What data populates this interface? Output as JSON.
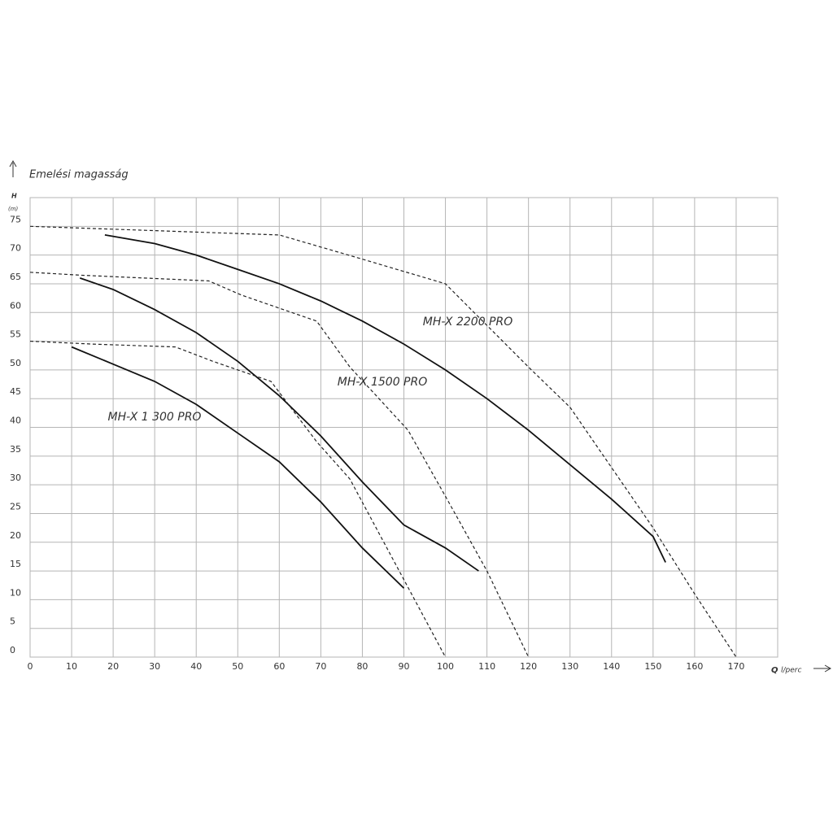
{
  "chart_data": {
    "type": "line",
    "ylabel": "Emelési magasság",
    "y_symbol": "H",
    "y_unit": "(m)",
    "x_symbol": "Q",
    "xlabel": "l/perc",
    "xlim": [
      0,
      180
    ],
    "xticks": [
      0,
      10,
      20,
      30,
      40,
      50,
      60,
      70,
      80,
      90,
      100,
      110,
      120,
      130,
      140,
      150,
      160,
      170
    ],
    "ylim": [
      0,
      80
    ],
    "yticks": [
      0,
      5,
      10,
      15,
      20,
      25,
      30,
      35,
      40,
      45,
      50,
      55,
      60,
      65,
      70,
      75
    ],
    "grid": true,
    "series": [
      {
        "name": "MH-X 1 300 PRO",
        "color": "#111111",
        "style": "solid",
        "x": [
          10,
          20,
          30,
          40,
          50,
          60,
          70,
          80,
          90
        ],
        "values": [
          54,
          51,
          48,
          44,
          39,
          34,
          27,
          19,
          12
        ]
      },
      {
        "name": "MH-X 1500 PRO",
        "color": "#111111",
        "style": "solid",
        "x": [
          12,
          20,
          30,
          40,
          50,
          60,
          70,
          80,
          90,
          100,
          108
        ],
        "values": [
          66,
          64,
          60.5,
          56.5,
          51.5,
          45.5,
          38.5,
          30.5,
          23,
          19,
          15
        ]
      },
      {
        "name": "MH-X 2200 PRO",
        "color": "#111111",
        "style": "solid",
        "x": [
          18,
          30,
          40,
          50,
          60,
          70,
          80,
          90,
          100,
          110,
          120,
          130,
          140,
          150,
          153
        ],
        "values": [
          73.5,
          72,
          70,
          67.5,
          65,
          62,
          58.5,
          54.5,
          50,
          45,
          39.5,
          33.5,
          27.5,
          21,
          16.5
        ]
      },
      {
        "color": "#222222",
        "style": "dashed",
        "x": [
          0,
          15,
          35,
          44,
          58,
          69,
          77,
          100
        ],
        "values": [
          55,
          54.5,
          54,
          51.5,
          48,
          37.5,
          31,
          0
        ]
      },
      {
        "color": "#222222",
        "style": "dashed",
        "x": [
          0,
          12,
          43,
          51,
          69,
          77,
          91,
          100,
          110,
          120
        ],
        "values": [
          67,
          66.5,
          65.5,
          63,
          58.5,
          50.5,
          39.5,
          28,
          15,
          0
        ]
      },
      {
        "color": "#222222",
        "style": "dashed",
        "x": [
          0,
          20,
          60,
          79,
          100,
          120,
          130,
          150,
          160,
          170
        ],
        "values": [
          75,
          74.5,
          73.5,
          69.5,
          65,
          50.5,
          43.5,
          22.5,
          11,
          0
        ]
      }
    ]
  }
}
